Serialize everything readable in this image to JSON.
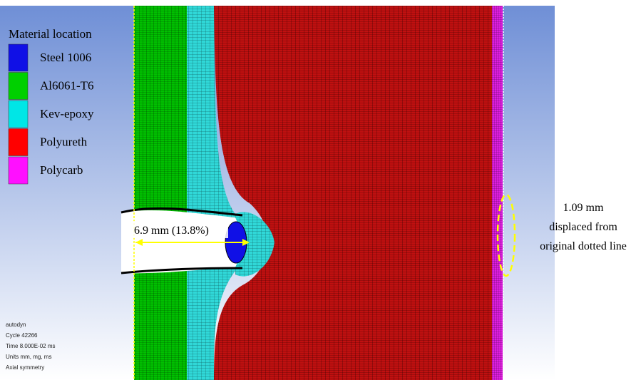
{
  "legend": {
    "title": "Material location",
    "items": [
      {
        "label": "Steel 1006",
        "color": "#1010e6"
      },
      {
        "label": "Al6061-T6",
        "color": "#00d000"
      },
      {
        "label": "Kev-epoxy",
        "color": "#00e6e6"
      },
      {
        "label": "Polyureth",
        "color": "#ff0000"
      },
      {
        "label": "Polycarb",
        "color": "#ff10ff"
      }
    ]
  },
  "annotations": {
    "penetration": "6.9 mm (13.8%)",
    "displacement": [
      "1.09 mm",
      "displaced from",
      "original dotted line"
    ]
  },
  "info": [
    "autodyn",
    "Cycle 42266",
    "Time 8.000E-02 ms",
    "Units mm, mg, ms",
    "Axial symmetry"
  ]
}
